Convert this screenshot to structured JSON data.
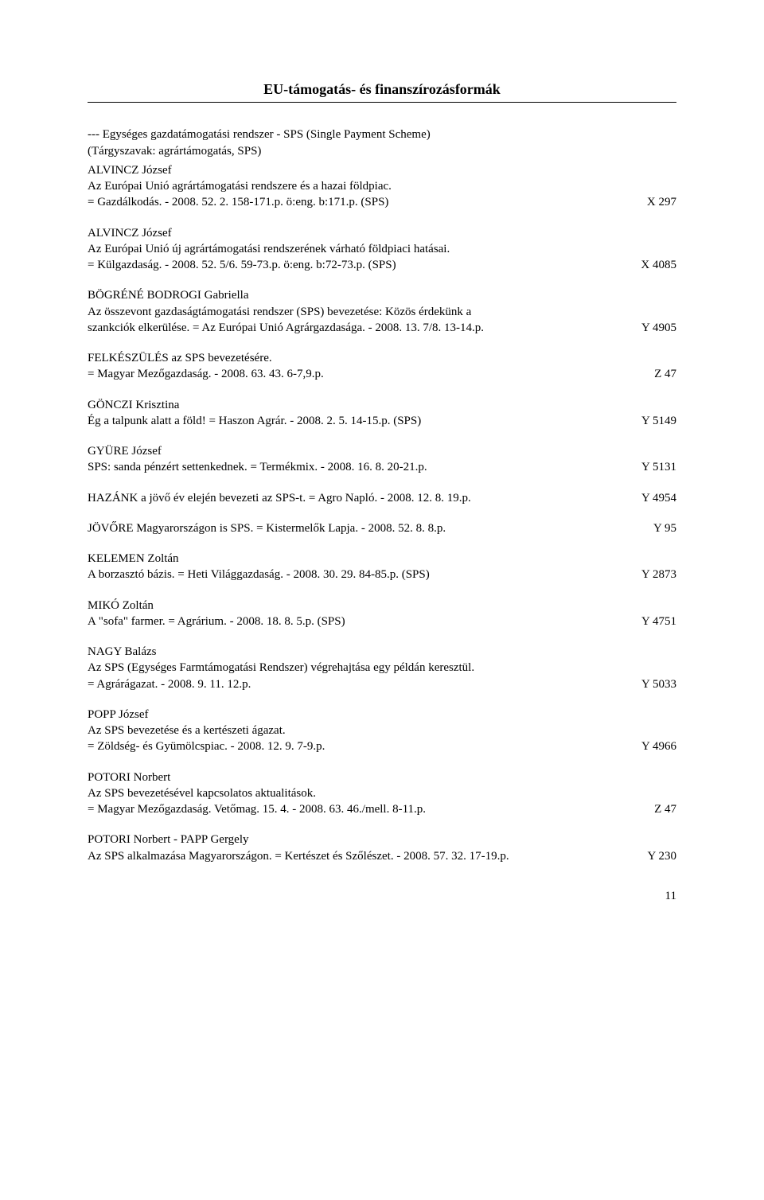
{
  "section_title": "EU-támogatás- és finanszírozásformák",
  "subheading": "--- Egységes gazdatámogatási rendszer - SPS (Single Payment Scheme)",
  "subheading_kw": "(Tárgyszavak: agrártámogatás, SPS)",
  "entries": [
    {
      "author": "ALVINCZ József",
      "lines": [
        {
          "text": "Az Európai Unió agrártámogatási rendszere és a hazai földpiac."
        },
        {
          "text": "= Gazdálkodás. - 2008. 52. 2. 158-171.p.  ö:eng. b:171.p. (SPS)",
          "code": "X 297"
        }
      ]
    },
    {
      "author": "ALVINCZ József",
      "lines": [
        {
          "text": "Az Európai Unió új agrártámogatási rendszerének várható földpiaci hatásai."
        },
        {
          "text": "= Külgazdaság. - 2008. 52. 5/6. 59-73.p.  ö:eng. b:72-73.p. (SPS)",
          "code": "X 4085"
        }
      ]
    },
    {
      "author": "BÖGRÉNÉ BODROGI Gabriella",
      "lines": [
        {
          "text": "Az összevont gazdaságtámogatási rendszer (SPS) bevezetése: Közös érdekünk a"
        },
        {
          "text": "szankciók elkerülése. = Az Európai Unió Agrárgazdasága. - 2008. 13. 7/8. 13-14.p.",
          "code": "Y 4905"
        }
      ]
    },
    {
      "author": "FELKÉSZÜLÉS az SPS bevezetésére.",
      "lines": [
        {
          "text": "= Magyar Mezőgazdaság. - 2008. 63. 43. 6-7,9.p.",
          "code": "Z 47"
        }
      ]
    },
    {
      "author": "GÖNCZI Krisztina",
      "lines": [
        {
          "text": "Ég a talpunk alatt a föld! = Haszon Agrár. - 2008. 2. 5. 14-15.p.  (SPS)",
          "code": "Y 5149"
        }
      ]
    },
    {
      "author": "GYÜRE József",
      "lines": [
        {
          "text": "SPS: sanda pénzért settenkednek. = Termékmix. - 2008. 16. 8. 20-21.p.",
          "code": "Y 5131"
        }
      ]
    },
    {
      "author": "",
      "lines": [
        {
          "text": "HAZÁNK a jövő év elején bevezeti az SPS-t. = Agro Napló. - 2008. 12. 8. 19.p.",
          "code": "Y 4954"
        }
      ]
    },
    {
      "author": "",
      "lines": [
        {
          "text": "JÖVŐRE Magyarországon is SPS. = Kistermelők Lapja. - 2008. 52. 8. 8.p.",
          "code": "Y 95"
        }
      ]
    },
    {
      "author": "KELEMEN Zoltán",
      "lines": [
        {
          "text": "A borzasztó bázis. = Heti Világgazdaság. - 2008. 30. 29. 84-85.p.  (SPS)",
          "code": "Y 2873"
        }
      ]
    },
    {
      "author": "MIKÓ Zoltán",
      "lines": [
        {
          "text": "A \"sofa\" farmer. = Agrárium. - 2008. 18. 8. 5.p. (SPS)",
          "code": "Y 4751"
        }
      ]
    },
    {
      "author": "NAGY Balázs",
      "lines": [
        {
          "text": "Az SPS (Egységes Farmtámogatási Rendszer) végrehajtása egy példán keresztül."
        },
        {
          "text": "= Agrárágazat. - 2008. 9. 11. 12.p.",
          "code": "Y 5033"
        }
      ]
    },
    {
      "author": "POPP József",
      "lines": [
        {
          "text": "Az SPS bevezetése és a kertészeti ágazat."
        },
        {
          "text": "= Zöldség- és Gyümölcspiac. - 2008. 12. 9. 7-9.p.",
          "code": "Y 4966"
        }
      ]
    },
    {
      "author": "POTORI Norbert",
      "lines": [
        {
          "text": "Az SPS bevezetésével kapcsolatos aktualitások."
        },
        {
          "text": "= Magyar Mezőgazdaság. Vetőmag. 15. 4. - 2008. 63. 46./mell. 8-11.p.",
          "code": "Z 47"
        }
      ]
    },
    {
      "author": "POTORI Norbert - PAPP Gergely",
      "lines": [
        {
          "text": "Az SPS alkalmazása Magyarországon. = Kertészet és Szőlészet. - 2008. 57. 32. 17-19.p.",
          "code": "Y 230",
          "tight": true
        }
      ]
    }
  ],
  "page_number": "11"
}
